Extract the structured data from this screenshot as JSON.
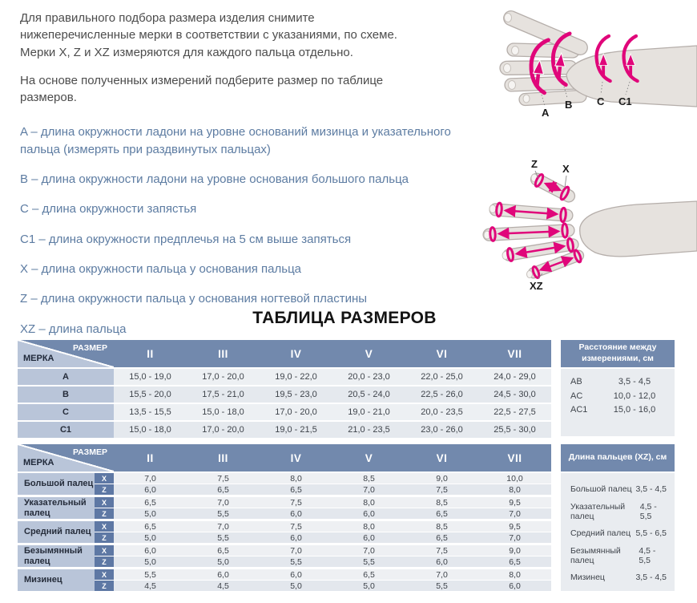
{
  "colors": {
    "header_blue": "#7289ad",
    "label_cell_blue": "#b9c5d9",
    "badge_blue": "#5e78a4",
    "row_light": "#edf0f3",
    "row_dark": "#e5e9ee",
    "definition_text": "#5d7ca2",
    "accent_pink": "#e0067a"
  },
  "intro": {
    "paragraph1": "Для правильного подбора размера изделия снимите нижеперечисленные мерки в соответствии с указаниями, по схеме. Мерки X, Z и XZ измеряются для каждого пальца отдельно.",
    "paragraph2": "На основе полученных измерений подберите размер по таблице размеров."
  },
  "definitions": [
    "A – длина окружности ладони на уровне оснований мизинца и указательного пальца (измерять при раздвинутых пальцах)",
    "B – длина окружности ладони на уровне основания большого пальца",
    "C – длина окружности запястья",
    "C1 – длина окружности предплечья на 5 см выше запяться",
    "X – длина окружности пальца у основания пальца",
    "Z – длина окружности пальца у основания ногтевой пластины",
    "XZ – длина пальца"
  ],
  "hand_diagram_top": {
    "labels": [
      "A",
      "B",
      "C",
      "C1"
    ]
  },
  "hand_diagram_bottom": {
    "label_z": "Z",
    "label_x": "X",
    "label_xz": "XZ"
  },
  "size_table_title": "ТАБЛИЦА РАЗМЕРОВ",
  "size_table": {
    "corner_top": "РАЗМЕР",
    "corner_bottom": "МЕРКА",
    "columns": [
      "II",
      "III",
      "IV",
      "V",
      "VI",
      "VII"
    ],
    "rows": [
      {
        "label": "A",
        "values": [
          "15,0 - 19,0",
          "17,0 - 20,0",
          "19,0 - 22,0",
          "20,0 - 23,0",
          "22,0 - 25,0",
          "24,0 - 29,0"
        ]
      },
      {
        "label": "B",
        "values": [
          "15,5 - 20,0",
          "17,5 - 21,0",
          "19,5 - 23,0",
          "20,5 - 24,0",
          "22,5 - 26,0",
          "24,5 - 30,0"
        ]
      },
      {
        "label": "C",
        "values": [
          "13,5 - 15,5",
          "15,0 - 18,0",
          "17,0 - 20,0",
          "19,0 - 21,0",
          "20,0 - 23,5",
          "22,5 - 27,5"
        ]
      },
      {
        "label": "C1",
        "values": [
          "15,0 - 18,0",
          "17,0 - 20,0",
          "19,0 - 21,5",
          "21,0 - 23,5",
          "23,0 - 26,0",
          "25,5 - 30,0"
        ]
      }
    ]
  },
  "distance_table": {
    "title": "Расстояние между измерениями, см",
    "rows": [
      {
        "label": "AB",
        "value": "3,5 - 4,5"
      },
      {
        "label": "AC",
        "value": "10,0 - 12,0"
      },
      {
        "label": "AC1",
        "value": "15,0 - 16,0"
      }
    ]
  },
  "finger_table": {
    "corner_top": "РАЗМЕР",
    "corner_bottom": "МЕРКА",
    "columns": [
      "II",
      "III",
      "IV",
      "V",
      "VI",
      "VII"
    ],
    "row_x_label": "X",
    "row_z_label": "Z",
    "rows": [
      {
        "label": "Большой палец",
        "x": [
          "7,0",
          "7,5",
          "8,0",
          "8,5",
          "9,0",
          "10,0"
        ],
        "z": [
          "6,0",
          "6,5",
          "6,5",
          "7,0",
          "7,5",
          "8,0"
        ]
      },
      {
        "label": "Указательный палец",
        "x": [
          "6,5",
          "7,0",
          "7,5",
          "8,0",
          "8,5",
          "9,5"
        ],
        "z": [
          "5,0",
          "5,5",
          "6,0",
          "6,0",
          "6,5",
          "7,0"
        ]
      },
      {
        "label": "Средний палец",
        "x": [
          "6,5",
          "7,0",
          "7,5",
          "8,0",
          "8,5",
          "9,5"
        ],
        "z": [
          "5,0",
          "5,5",
          "6,0",
          "6,0",
          "6,5",
          "7,0"
        ]
      },
      {
        "label": "Безымянный палец",
        "x": [
          "6,0",
          "6,5",
          "7,0",
          "7,0",
          "7,5",
          "9,0"
        ],
        "z": [
          "5,0",
          "5,0",
          "5,5",
          "5,5",
          "6,0",
          "6,5"
        ]
      },
      {
        "label": "Мизинец",
        "x": [
          "5,5",
          "6,0",
          "6,0",
          "6,5",
          "7,0",
          "8,0"
        ],
        "z": [
          "4,5",
          "4,5",
          "5,0",
          "5,0",
          "5,5",
          "6,0"
        ]
      }
    ]
  },
  "finger_length_table": {
    "title": "Длина пальцев (XZ), см",
    "rows": [
      {
        "label": "Большой палец",
        "value": "3,5 - 4,5"
      },
      {
        "label": "Указательный палец",
        "value": "4,5 - 5,5"
      },
      {
        "label": "Средний палец",
        "value": "5,5 - 6,5"
      },
      {
        "label": "Безымянный палец",
        "value": "4,5 - 5,5"
      },
      {
        "label": "Мизинец",
        "value": "3,5 - 4,5"
      }
    ]
  }
}
